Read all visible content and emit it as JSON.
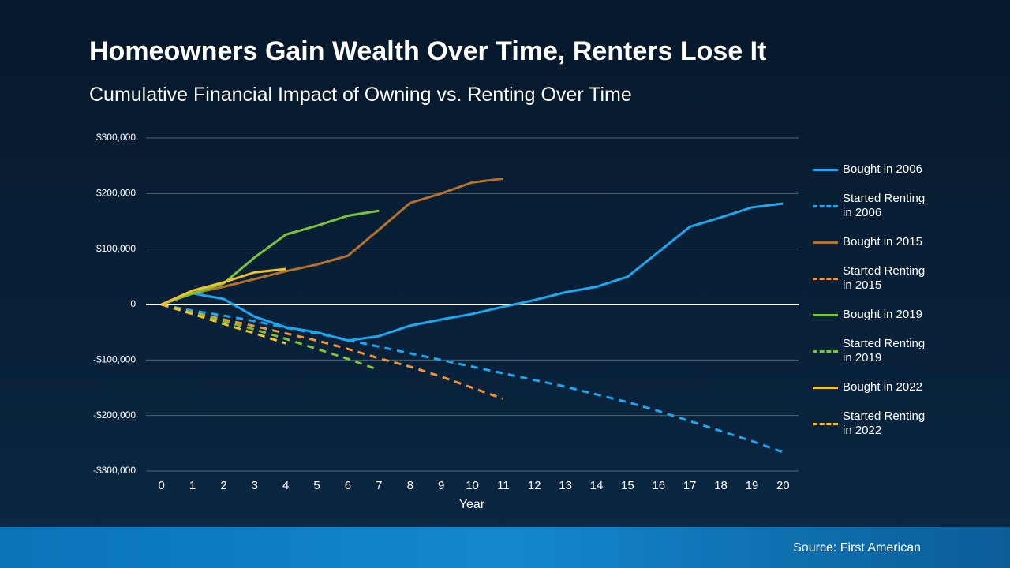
{
  "chart_data": {
    "type": "line",
    "title": "Homeowners Gain Wealth Over Time, Renters Lose It",
    "subtitle": "Cumulative Financial Impact of Owning vs. Renting Over Time",
    "x_label": "Year",
    "source": "Source: First American",
    "x": [
      0,
      1,
      2,
      3,
      4,
      5,
      6,
      7,
      8,
      9,
      10,
      11,
      12,
      13,
      14,
      15,
      16,
      17,
      18,
      19,
      20
    ],
    "xlim": [
      -0.5,
      20.5
    ],
    "xticks": [
      0,
      1,
      2,
      3,
      4,
      5,
      6,
      7,
      8,
      9,
      10,
      11,
      12,
      13,
      14,
      15,
      16,
      17,
      18,
      19,
      20
    ],
    "ylim": [
      -300000,
      300000
    ],
    "yticks": [
      {
        "value": -300000,
        "label": "-$300,000"
      },
      {
        "value": -200000,
        "label": "-$200,000"
      },
      {
        "value": -100000,
        "label": "-$100,000"
      },
      0,
      {
        "value": 100000,
        "label": "$100,000"
      },
      {
        "value": 200000,
        "label": "$200,000"
      },
      {
        "value": 300000,
        "label": "$300,000"
      }
    ],
    "grid": true,
    "legend": "right",
    "series": [
      {
        "name": "Bought in 2006",
        "color": "#1ea7ee",
        "dashed": false,
        "values": [
          0,
          20000,
          10000,
          -22000,
          -41000,
          -50000,
          -65000,
          -57000,
          -38000,
          -27000,
          -17000,
          -4000,
          8000,
          22000,
          32000,
          50000,
          95000,
          140000,
          157000,
          175000,
          182000
        ]
      },
      {
        "name": "Started Renting in 2006",
        "color": "#1ea7ee",
        "dashed": true,
        "values": [
          0,
          -11000,
          -20000,
          -30000,
          -42000,
          -52000,
          -64000,
          -76000,
          -88000,
          -100000,
          -112000,
          -124000,
          -136000,
          -148000,
          -162000,
          -176000,
          -192000,
          -210000,
          -228000,
          -246000,
          -266000
        ]
      },
      {
        "name": "Bought in 2015",
        "color": "#b5722b",
        "dashed": false,
        "values": [
          0,
          20000,
          32000,
          46000,
          60000,
          72000,
          88000,
          135000,
          183000,
          200000,
          220000,
          227000,
          null,
          null,
          null,
          null,
          null,
          null,
          null,
          null,
          null
        ]
      },
      {
        "name": "Started Renting in 2015",
        "color": "#f0933a",
        "dashed": true,
        "values": [
          0,
          -14000,
          -27000,
          -39000,
          -52000,
          -65000,
          -80000,
          -97000,
          -112000,
          -130000,
          -150000,
          -170000,
          null,
          null,
          null,
          null,
          null,
          null,
          null,
          null,
          null
        ]
      },
      {
        "name": "Bought in 2019",
        "color": "#7cc23a",
        "dashed": false,
        "values": [
          0,
          20000,
          38000,
          85000,
          126000,
          142000,
          160000,
          169000,
          null,
          null,
          null,
          null,
          null,
          null,
          null,
          null,
          null,
          null,
          null,
          null,
          null
        ]
      },
      {
        "name": "Started Renting in 2019",
        "color": "#7cc23a",
        "dashed": true,
        "values": [
          0,
          -15000,
          -30000,
          -45000,
          -62000,
          -80000,
          -98000,
          -118000,
          null,
          null,
          null,
          null,
          null,
          null,
          null,
          null,
          null,
          null,
          null,
          null,
          null
        ]
      },
      {
        "name": "Bought in 2022",
        "color": "#f2c12e",
        "dashed": false,
        "values": [
          0,
          25000,
          40000,
          58000,
          64000,
          null,
          null,
          null,
          null,
          null,
          null,
          null,
          null,
          null,
          null,
          null,
          null,
          null,
          null,
          null,
          null
        ]
      },
      {
        "name": "Started Renting in 2022",
        "color": "#f2c12e",
        "dashed": true,
        "values": [
          0,
          -17000,
          -35000,
          -52000,
          -70000,
          null,
          null,
          null,
          null,
          null,
          null,
          null,
          null,
          null,
          null,
          null,
          null,
          null,
          null,
          null,
          null
        ]
      }
    ]
  }
}
